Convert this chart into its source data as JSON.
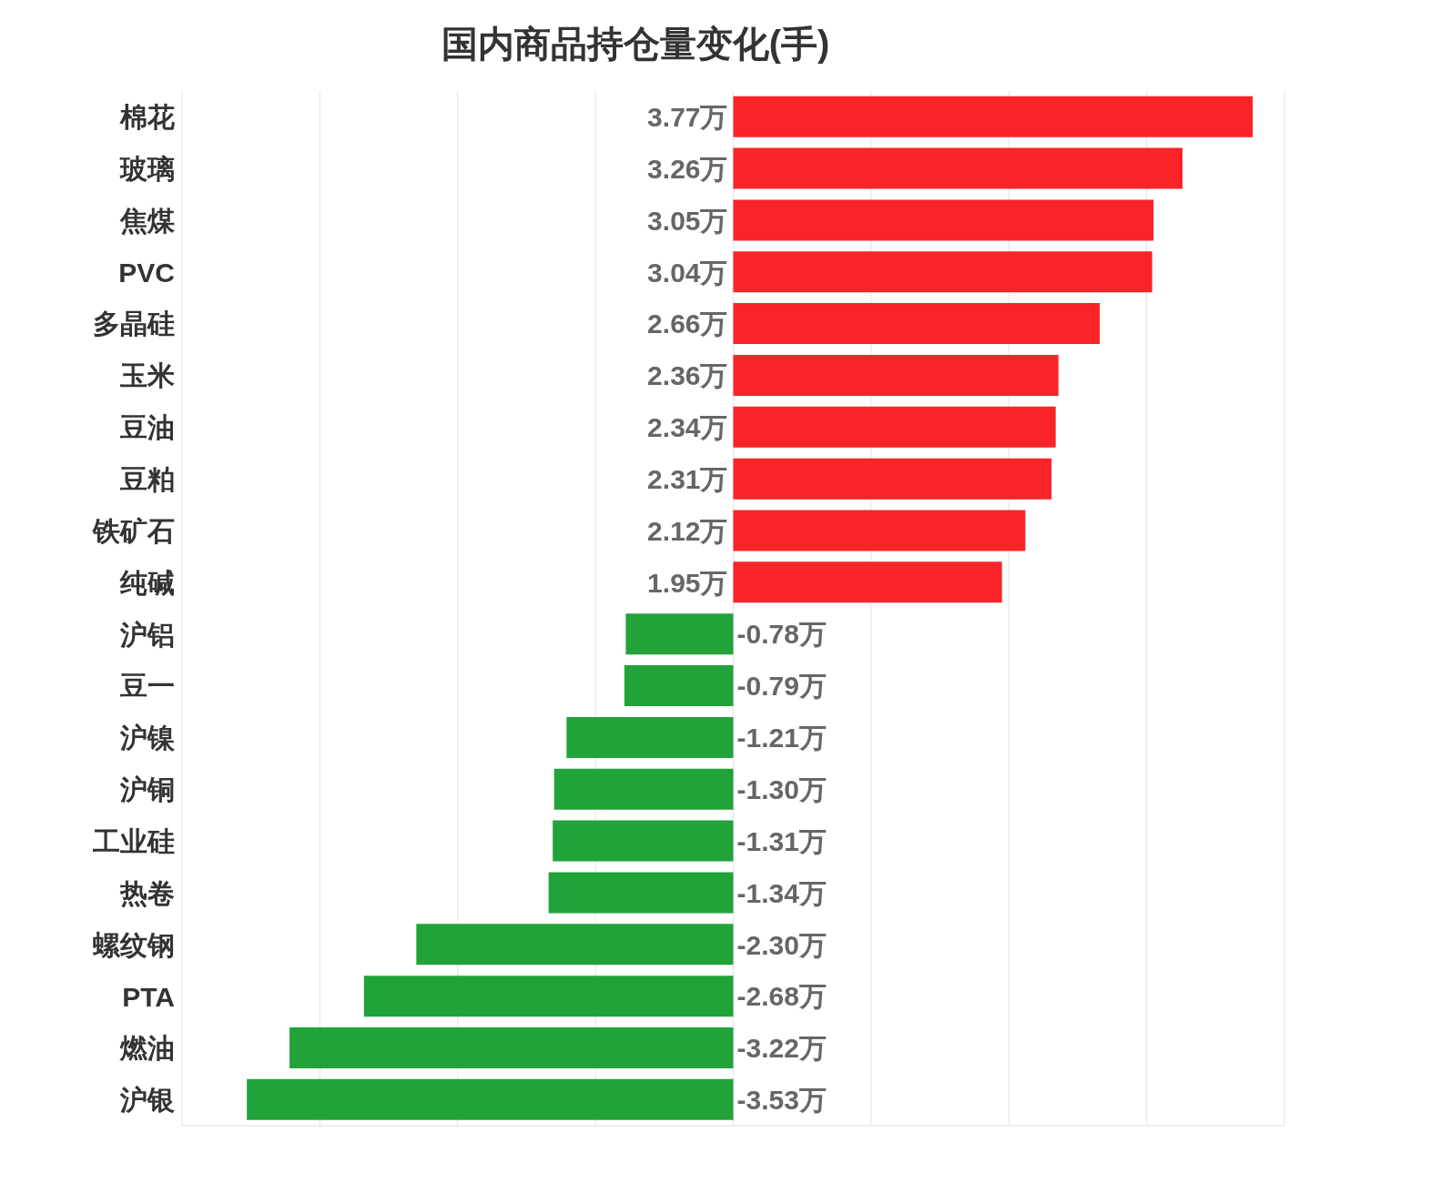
{
  "chart_data": {
    "type": "bar",
    "orientation": "horizontal",
    "title": "国内商品持仓量变化(手)",
    "categories": [
      "棉花",
      "玻璃",
      "焦煤",
      "PVC",
      "多晶硅",
      "玉米",
      "豆油",
      "豆粕",
      "铁矿石",
      "纯碱",
      "沪铝",
      "豆一",
      "沪镍",
      "沪铜",
      "工业硅",
      "热卷",
      "螺纹钢",
      "PTA",
      "燃油",
      "沪银"
    ],
    "values": [
      3.77,
      3.26,
      3.05,
      3.04,
      2.66,
      2.36,
      2.34,
      2.31,
      2.12,
      1.95,
      -0.78,
      -0.79,
      -1.21,
      -1.3,
      -1.31,
      -1.34,
      -2.3,
      -2.68,
      -3.22,
      -3.53
    ],
    "colors": [
      "#f82428",
      "#f82428",
      "#f82428",
      "#f82428",
      "#f82428",
      "#f82428",
      "#f82428",
      "#f82428",
      "#f82428",
      "#f82428",
      "#21a33a",
      "#21a33a",
      "#21a33a",
      "#21a33a",
      "#21a33a",
      "#21a33a",
      "#21a33a",
      "#21a33a",
      "#21a33a",
      "#21a33a"
    ],
    "value_labels": [
      "3.77万",
      "3.26万",
      "3.05万",
      "3.04万",
      "2.66万",
      "2.36万",
      "2.34万",
      "2.31万",
      "2.12万",
      "1.95万",
      "-0.78万",
      "-0.79万",
      "-1.21万",
      "-1.30万",
      "-1.31万",
      "-1.34万",
      "-2.30万",
      "-2.68万",
      "-3.22万",
      "-3.53万"
    ],
    "xlim": [
      -4,
      4
    ],
    "xticks": [
      {
        "value": -4,
        "label": null
      },
      {
        "value": -3,
        "label": null
      },
      {
        "value": -2,
        "label": null
      },
      {
        "value": -1,
        "label": null
      },
      {
        "value": 0,
        "label": null
      },
      {
        "value": 1,
        "label": null
      },
      {
        "value": 2,
        "label": null
      },
      {
        "value": 3,
        "label": null
      },
      {
        "value": 4,
        "label": null
      }
    ],
    "grid": "x",
    "tick_labels": "y"
  }
}
